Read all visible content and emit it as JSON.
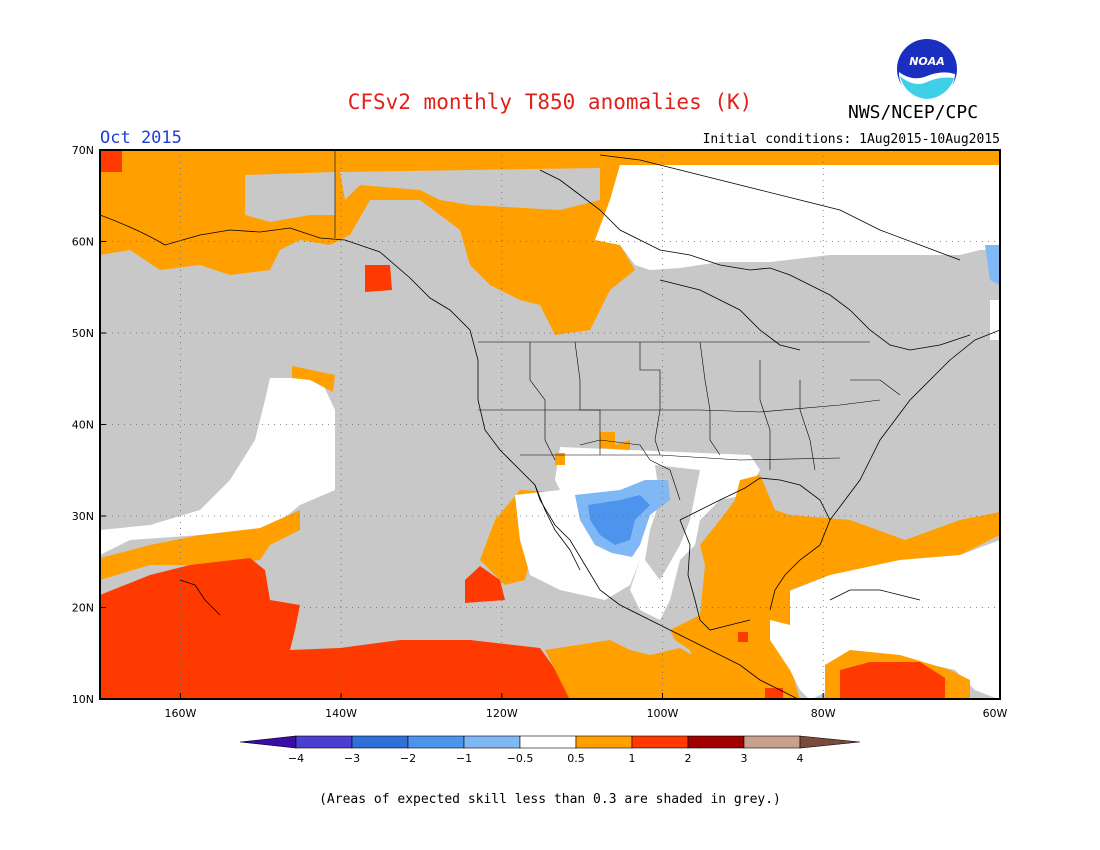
{
  "header": {
    "title": "CFSv2 monthly T850 anomalies (K)",
    "agency": "NWS/NCEP/CPC",
    "month": "Oct 2015",
    "initial_conditions": "Initial conditions: 1Aug2015-10Aug2015",
    "logo_text": "NOAA"
  },
  "map": {
    "lat_ticks": [
      "70N",
      "60N",
      "50N",
      "40N",
      "30N",
      "20N",
      "10N"
    ],
    "lon_ticks": [
      "160W",
      "140W",
      "120W",
      "100W",
      "80W",
      "60W"
    ],
    "extent": {
      "lon_min": -172,
      "lon_max": -60,
      "lat_min": 10,
      "lat_max": 70
    },
    "skill_mask_color": "#c8c8c8"
  },
  "legend": {
    "colors": [
      "#3a0ca8",
      "#4a3fcf",
      "#2f6fd8",
      "#4d94ee",
      "#7fb8f5",
      "#ffffff",
      "#ffa000",
      "#ff3a00",
      "#a00000",
      "#c8a08c",
      "#7a4a3a"
    ],
    "labels": [
      "−4",
      "−3",
      "−2",
      "−1",
      "−0.5",
      "0.5",
      "1",
      "2",
      "3",
      "4"
    ]
  },
  "caption": "(Areas of expected skill less than 0.3 are shaded in grey.)",
  "palette": {
    "orange": "#ffa000",
    "red": "#ff3a00",
    "grey": "#c8c8c8",
    "light_blue": "#7fb8f5",
    "blue": "#4d94ee",
    "title_red": "#e0201a",
    "month_blue": "#1f3cd6"
  }
}
